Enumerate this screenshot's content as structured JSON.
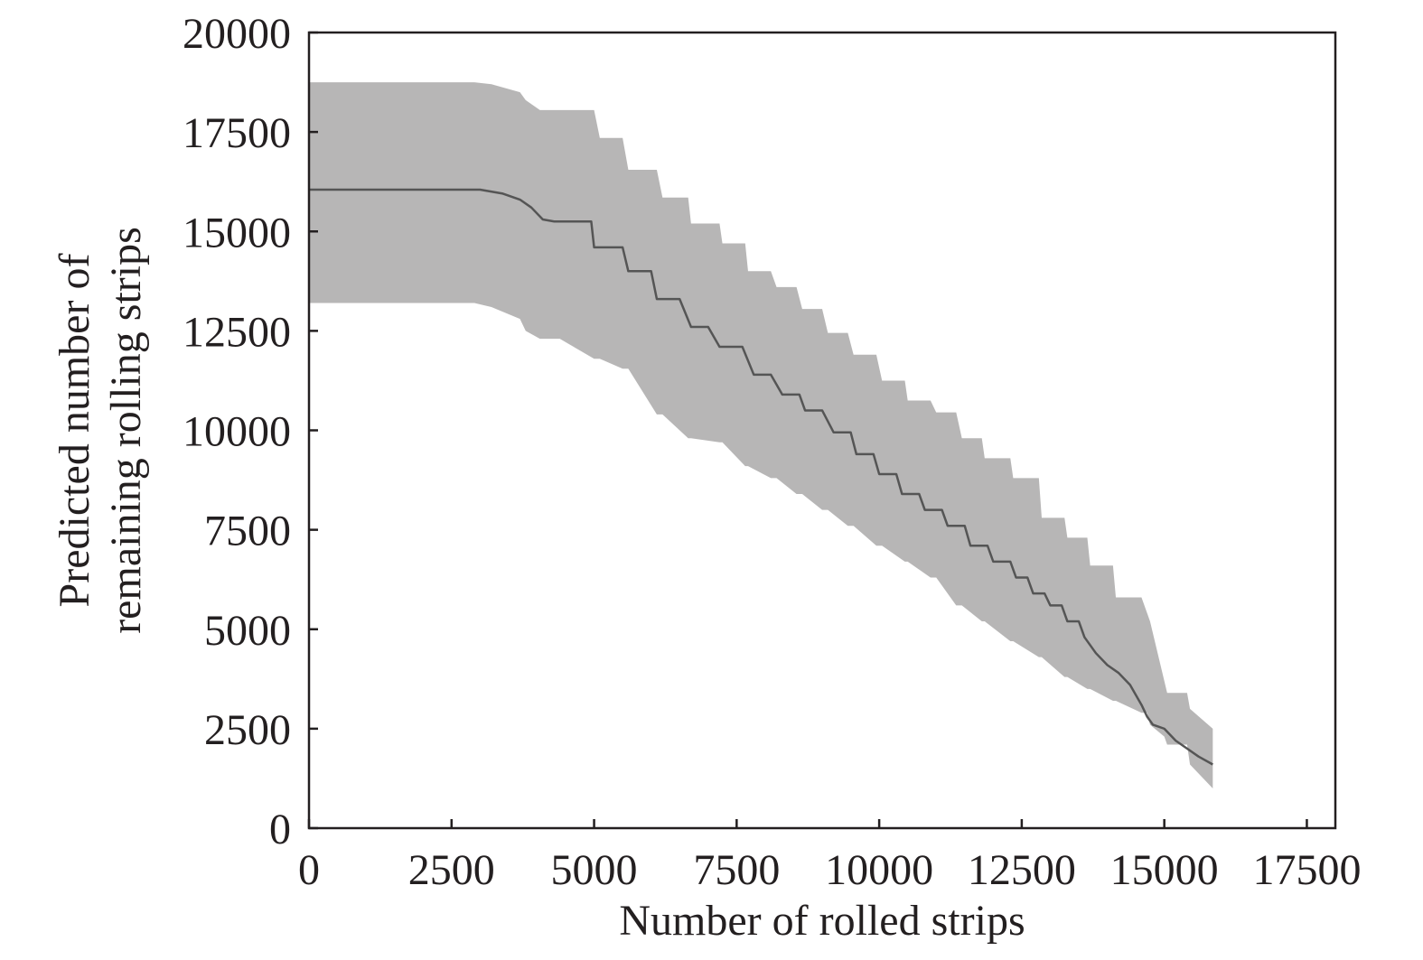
{
  "chart_data": {
    "type": "line",
    "title": "",
    "xlabel": "Number of rolled strips",
    "ylabel_lines": [
      "Predicted number of",
      "remaining rolling strips"
    ],
    "xlim": [
      0,
      18000
    ],
    "ylim": [
      0,
      20000
    ],
    "x_ticks": [
      0,
      2500,
      5000,
      7500,
      10000,
      12500,
      15000,
      17500
    ],
    "x_tick_labels": [
      "0",
      "2500",
      "5000",
      "7500",
      "10000",
      "12500",
      "15000",
      "17500"
    ],
    "y_ticks": [
      0,
      2500,
      5000,
      7500,
      10000,
      12500,
      15000,
      17500,
      20000
    ],
    "y_tick_labels": [
      "0",
      "2500",
      "5000",
      "7500",
      "10000",
      "12500",
      "15000",
      "17500",
      "20000"
    ],
    "grid": false,
    "colors": {
      "band": "#b7b6b6",
      "line": "#555555",
      "axis": "#231f20"
    },
    "series": [
      {
        "role": "prediction",
        "x": [
          0,
          3000,
          3400,
          3700,
          3900,
          4100,
          4300,
          4950,
          5000,
          5500,
          5600,
          6000,
          6100,
          6500,
          6700,
          7000,
          7200,
          7600,
          7800,
          8100,
          8300,
          8600,
          8700,
          9000,
          9200,
          9500,
          9600,
          9900,
          10000,
          10300,
          10400,
          10700,
          10800,
          11100,
          11200,
          11500,
          11600,
          11900,
          12000,
          12300,
          12400,
          12600,
          12700,
          12900,
          13000,
          13200,
          13300,
          13500,
          13600,
          13800,
          14000,
          14200,
          14400,
          14600,
          14700,
          14800,
          15000,
          15200,
          15400,
          15600,
          15850
        ],
        "y": [
          16050,
          16050,
          15950,
          15800,
          15600,
          15300,
          15250,
          15250,
          14600,
          14600,
          14000,
          14000,
          13300,
          13300,
          12600,
          12600,
          12100,
          12100,
          11400,
          11400,
          10900,
          10900,
          10500,
          10500,
          9950,
          9950,
          9400,
          9400,
          8900,
          8900,
          8400,
          8400,
          8000,
          8000,
          7600,
          7600,
          7100,
          7100,
          6700,
          6700,
          6300,
          6300,
          5900,
          5900,
          5600,
          5600,
          5200,
          5200,
          4800,
          4400,
          4100,
          3900,
          3600,
          3100,
          2800,
          2600,
          2500,
          2200,
          2000,
          1800,
          1600
        ]
      }
    ],
    "band": {
      "role": "confidence-interval",
      "x": [
        0,
        2900,
        3200,
        3700,
        3800,
        4050,
        4200,
        4400,
        5000,
        5100,
        5500,
        5600,
        6100,
        6200,
        6650,
        6700,
        7200,
        7250,
        7650,
        7700,
        8100,
        8200,
        8550,
        8650,
        9000,
        9100,
        9450,
        9550,
        9950,
        10050,
        10450,
        10500,
        10900,
        11000,
        11350,
        11450,
        11800,
        11850,
        12300,
        12350,
        12800,
        12850,
        13250,
        13300,
        13650,
        13700,
        14100,
        14150,
        14600,
        14700,
        14750,
        15000,
        15050,
        15400,
        15450,
        15850
      ],
      "upper": [
        18750,
        18750,
        18700,
        18500,
        18300,
        18050,
        18050,
        18050,
        18050,
        17350,
        17350,
        16550,
        16550,
        15850,
        15850,
        15200,
        15200,
        14700,
        14700,
        14000,
        14000,
        13600,
        13600,
        13050,
        13050,
        12450,
        12450,
        11900,
        11900,
        11250,
        11250,
        10750,
        10750,
        10450,
        10450,
        9800,
        9800,
        9300,
        9300,
        8800,
        8800,
        7800,
        7800,
        7300,
        7300,
        6600,
        6600,
        5800,
        5800,
        5400,
        5200,
        3700,
        3400,
        3400,
        3000,
        2500
      ],
      "lower": [
        13200,
        13200,
        13100,
        12800,
        12500,
        12300,
        12300,
        12300,
        11800,
        11800,
        11550,
        11550,
        10400,
        10400,
        9800,
        9800,
        9700,
        9700,
        9100,
        9100,
        8800,
        8800,
        8400,
        8400,
        8000,
        8000,
        7600,
        7600,
        7100,
        7100,
        6700,
        6700,
        6300,
        6300,
        5600,
        5600,
        5200,
        5200,
        4700,
        4700,
        4300,
        4300,
        3800,
        3800,
        3500,
        3500,
        3200,
        3200,
        2900,
        2900,
        2600,
        2300,
        2100,
        2100,
        1600,
        1000
      ]
    }
  }
}
